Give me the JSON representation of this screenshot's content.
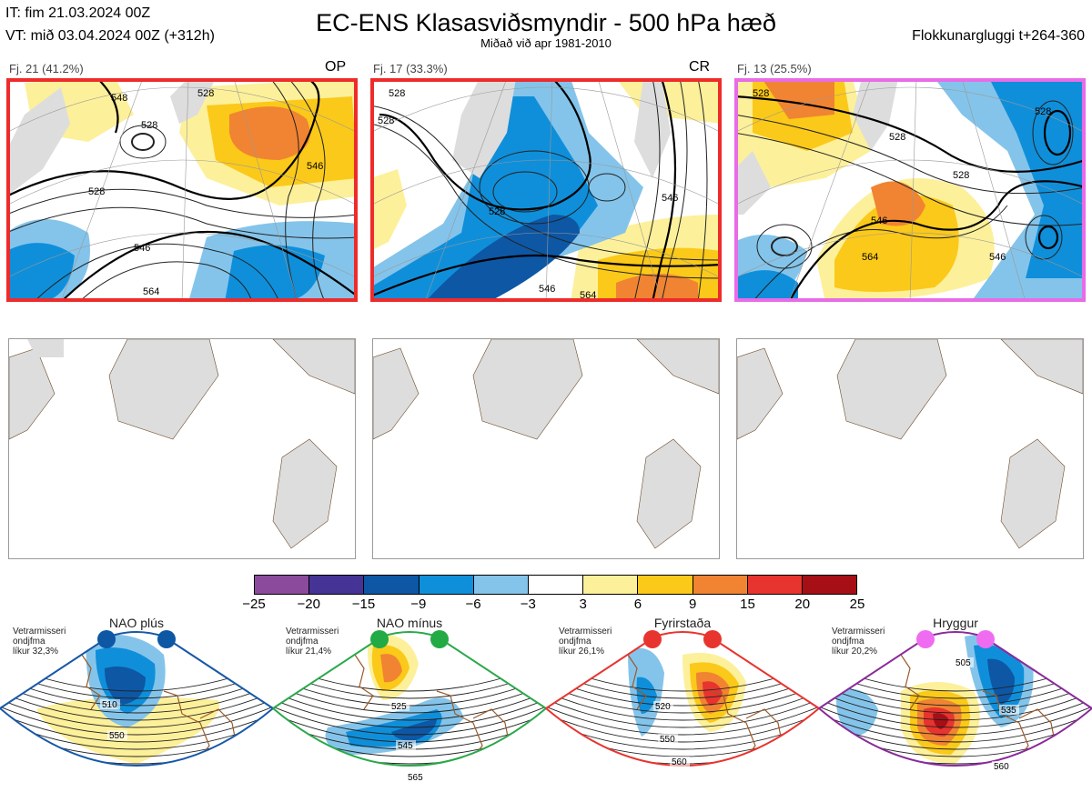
{
  "header": {
    "it": "IT: fim 21.03.2024 00Z",
    "vt": "VT: mið 03.04.2024 00Z  (+312h)",
    "title": "EC-ENS Klasasviðsmyndir - 500 hPa hæð",
    "subtitle": "Miðað við apr 1981-2010",
    "window": "Flokkunargluggi t+264-360"
  },
  "clusters": [
    {
      "label": "Fj. 21 (41.2%)",
      "tag": "OP",
      "border_color": "#ee2b2b",
      "contours": [
        "548",
        "528",
        "528",
        "546",
        "528",
        "546",
        "564"
      ]
    },
    {
      "label": "Fj. 17 (33.3%)",
      "tag": "CR",
      "border_color": "#ee2b2b",
      "contours": [
        "528",
        "528",
        "528",
        "546",
        "546",
        "564"
      ]
    },
    {
      "label": "Fj. 13 (25.5%)",
      "tag": "",
      "border_color": "#e86be8",
      "contours": [
        "528",
        "528",
        "528",
        "528",
        "546",
        "546",
        "564"
      ]
    }
  ],
  "colorbar": {
    "ticks": [
      "−25",
      "−20",
      "−15",
      "−9",
      "−6",
      "−3",
      "3",
      "6",
      "9",
      "15",
      "20",
      "25"
    ],
    "colors": [
      "#8b4a9c",
      "#463396",
      "#0d57a5",
      "#0f8fda",
      "#84c4ea",
      "#ffffff",
      "#fdf09a",
      "#fbc919",
      "#f08432",
      "#e8342e",
      "#a50f15"
    ]
  },
  "regimes": [
    {
      "name": "NAO plús",
      "desc": [
        "Vetrarmisseri",
        "ondjfma",
        "líkur 32,3%"
      ],
      "border_color": "#1658a8",
      "dot_color": "#0d57a5",
      "contours": [
        "510",
        "550"
      ]
    },
    {
      "name": "NAO mínus",
      "desc": [
        "Vetrarmisseri",
        "ondjfma",
        "líkur 21,4%"
      ],
      "border_color": "#2aa84a",
      "dot_color": "#22aa44",
      "contours": [
        "525",
        "545",
        "565"
      ]
    },
    {
      "name": "Fyrirstaða",
      "desc": [
        "Vetrarmisseri",
        "ondjfma",
        "líkur 26,1%"
      ],
      "border_color": "#e8342e",
      "dot_color": "#e8342e",
      "contours": [
        "520",
        "550",
        "560"
      ]
    },
    {
      "name": "Hryggur",
      "desc": [
        "Vetrarmisseri",
        "ondjfma",
        "líkur 20,2%"
      ],
      "border_color": "#8a2a9a",
      "dot_color": "#ef6cf0",
      "contours": [
        "505",
        "535",
        "560"
      ]
    }
  ]
}
